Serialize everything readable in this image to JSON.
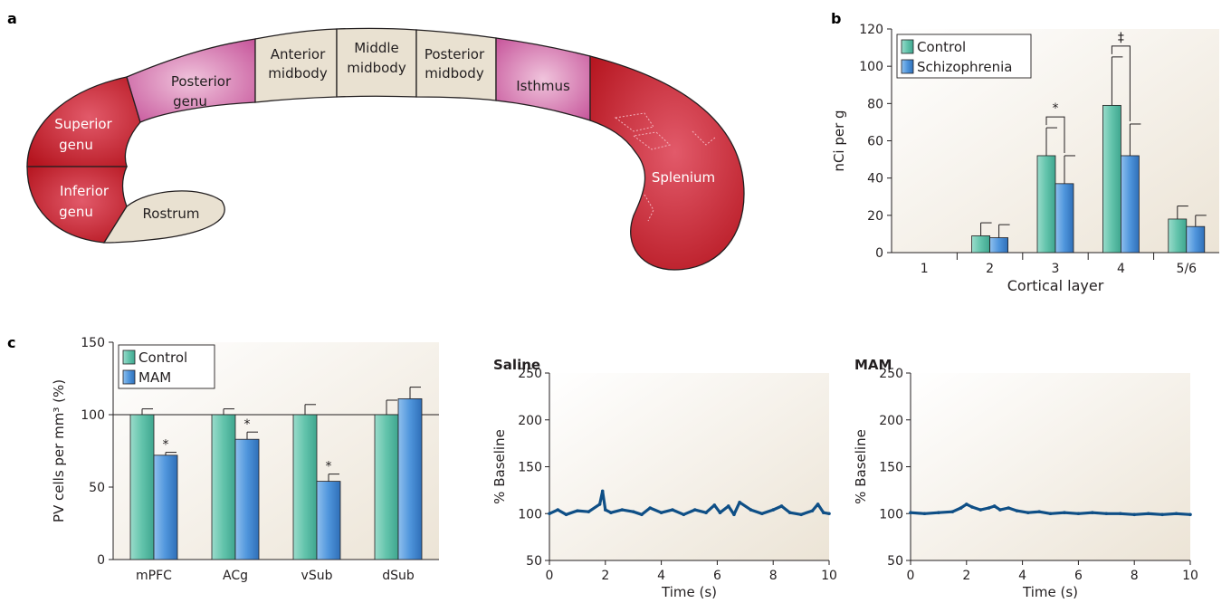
{
  "panel_labels": {
    "a": "a",
    "b": "b",
    "c": "c"
  },
  "colors": {
    "control": "#5fc3ad",
    "treatment": "#4a90d6",
    "genu_red": "#c3202f",
    "pink": "#cf5f9e",
    "beige": "#e9e1d1",
    "trace": "#0f4f86",
    "axis": "#231f20"
  },
  "callosum": {
    "regions": [
      {
        "name": "Superior genu",
        "lines": [
          "Superior",
          "genu"
        ]
      },
      {
        "name": "Inferior genu",
        "lines": [
          "Inferior",
          "genu"
        ]
      },
      {
        "name": "Rostrum",
        "lines": [
          "Rostrum"
        ]
      },
      {
        "name": "Posterior genu",
        "lines": [
          "Posterior",
          "genu"
        ]
      },
      {
        "name": "Anterior midbody",
        "lines": [
          "Anterior",
          "midbody"
        ]
      },
      {
        "name": "Middle midbody",
        "lines": [
          "Middle",
          "midbody"
        ]
      },
      {
        "name": "Posterior midbody",
        "lines": [
          "Posterior",
          "midbody"
        ]
      },
      {
        "name": "Isthmus",
        "lines": [
          "Isthmus"
        ]
      },
      {
        "name": "Splenium",
        "lines": [
          "Splenium"
        ]
      }
    ]
  },
  "chart_data": [
    {
      "id": "b",
      "type": "bar",
      "title": "",
      "xlabel": "Cortical layer",
      "ylabel": "nCi per g",
      "ylim": [
        0,
        120
      ],
      "yticks": [
        0,
        20,
        40,
        60,
        80,
        100,
        120
      ],
      "categories": [
        "1",
        "2",
        "3",
        "4",
        "5/6"
      ],
      "series": [
        {
          "name": "Control",
          "values": [
            null,
            9,
            52,
            79,
            18
          ],
          "errors": [
            null,
            7,
            15,
            26,
            7
          ]
        },
        {
          "name": "Schizophrenia",
          "values": [
            null,
            8,
            37,
            52,
            14
          ],
          "errors": [
            null,
            7,
            15,
            17,
            6
          ]
        }
      ],
      "annotations": [
        {
          "category": "3",
          "symbol": "*"
        },
        {
          "category": "4",
          "symbol": "‡"
        }
      ],
      "legend": "top-left"
    },
    {
      "id": "c-bar",
      "type": "bar",
      "title": "",
      "xlabel": "",
      "ylabel": "PV cells per mm³ (%)",
      "ylim": [
        0,
        150
      ],
      "yticks": [
        0,
        50,
        100,
        150
      ],
      "reference_line": 100,
      "categories": [
        "mPFC",
        "ACg",
        "vSub",
        "dSub"
      ],
      "series": [
        {
          "name": "Control",
          "values": [
            100,
            100,
            100,
            100
          ],
          "errors": [
            4,
            4,
            7,
            10
          ]
        },
        {
          "name": "MAM",
          "values": [
            72,
            83,
            54,
            111
          ],
          "errors": [
            2,
            5,
            5,
            8
          ]
        }
      ],
      "annotations": [
        {
          "category": "mPFC",
          "symbol": "*"
        },
        {
          "category": "ACg",
          "symbol": "*"
        },
        {
          "category": "vSub",
          "symbol": "*"
        }
      ],
      "legend": "top-left"
    },
    {
      "id": "c-saline",
      "type": "line",
      "title": "Saline",
      "xlabel": "Time (s)",
      "ylabel": "% Baseline",
      "xlim": [
        0,
        10
      ],
      "ylim": [
        50,
        250
      ],
      "xticks": [
        0,
        2,
        4,
        6,
        8,
        10
      ],
      "yticks": [
        50,
        100,
        150,
        200,
        250
      ],
      "series": [
        {
          "name": "",
          "x": [
            0,
            0.3,
            0.6,
            1.0,
            1.4,
            1.8,
            1.9,
            2.0,
            2.2,
            2.6,
            3.0,
            3.3,
            3.6,
            4.0,
            4.4,
            4.8,
            5.2,
            5.6,
            5.9,
            6.1,
            6.4,
            6.6,
            6.8,
            7.2,
            7.6,
            8.0,
            8.3,
            8.6,
            9.0,
            9.4,
            9.6,
            9.8,
            10.0
          ],
          "y": [
            100,
            104,
            99,
            103,
            102,
            110,
            124,
            104,
            101,
            104,
            102,
            99,
            106,
            101,
            104,
            99,
            104,
            101,
            109,
            101,
            108,
            99,
            112,
            104,
            100,
            104,
            108,
            101,
            99,
            103,
            110,
            101,
            100
          ]
        }
      ]
    },
    {
      "id": "c-mam",
      "type": "line",
      "title": "MAM",
      "xlabel": "Time (s)",
      "ylabel": "% Baseline",
      "xlim": [
        0,
        10
      ],
      "ylim": [
        50,
        250
      ],
      "xticks": [
        0,
        2,
        4,
        6,
        8,
        10
      ],
      "yticks": [
        50,
        100,
        150,
        200,
        250
      ],
      "series": [
        {
          "name": "",
          "x": [
            0,
            0.5,
            1.0,
            1.5,
            1.8,
            2.0,
            2.2,
            2.5,
            2.8,
            3.0,
            3.2,
            3.5,
            3.8,
            4.2,
            4.6,
            5.0,
            5.5,
            6.0,
            6.5,
            7.0,
            7.5,
            8.0,
            8.5,
            9.0,
            9.5,
            10.0
          ],
          "y": [
            101,
            100,
            101,
            102,
            106,
            110,
            107,
            104,
            106,
            108,
            104,
            106,
            103,
            101,
            102,
            100,
            101,
            100,
            101,
            100,
            100,
            99,
            100,
            99,
            100,
            99
          ]
        }
      ]
    }
  ]
}
